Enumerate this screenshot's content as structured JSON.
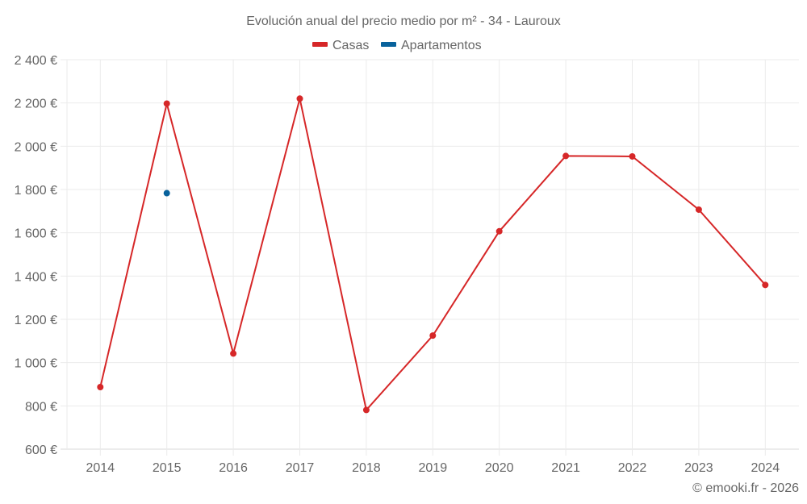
{
  "chart_data": {
    "type": "line",
    "title": "Evolución anual del precio medio por m² - 34 - Lauroux",
    "xlabel": "",
    "ylabel": "",
    "categories": [
      "2014",
      "2015",
      "2016",
      "2017",
      "2018",
      "2019",
      "2020",
      "2021",
      "2022",
      "2023",
      "2024"
    ],
    "series": [
      {
        "name": "Casas",
        "color": "#d62728",
        "values": [
          887,
          2197,
          1042,
          2220,
          781,
          1125,
          1607,
          1955,
          1953,
          1707,
          1359
        ]
      },
      {
        "name": "Apartamentos",
        "color": "#08629c",
        "values": [
          null,
          1783,
          null,
          null,
          null,
          null,
          null,
          null,
          null,
          null,
          null
        ]
      }
    ],
    "ylim": [
      600,
      2400
    ],
    "yticks": [
      600,
      800,
      1000,
      1200,
      1400,
      1600,
      1800,
      2000,
      2200,
      2400
    ],
    "ytick_labels": [
      "600 €",
      "800 €",
      "1 000 €",
      "1 200 €",
      "1 400 €",
      "1 600 €",
      "1 800 €",
      "2 000 €",
      "2 200 €",
      "2 400 €"
    ],
    "grid": true,
    "legend_position": "top"
  },
  "footer": {
    "credit": "© emooki.fr - 2026"
  }
}
